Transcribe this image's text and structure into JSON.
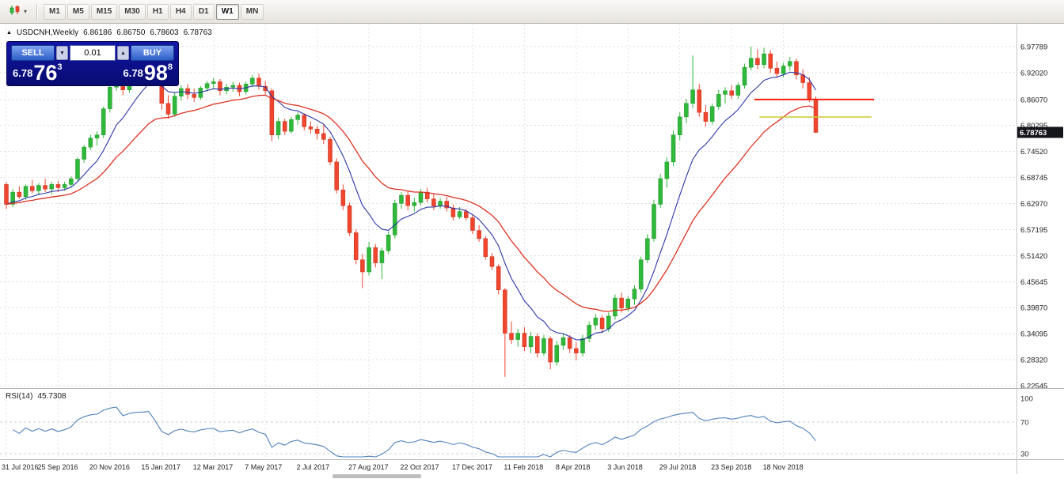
{
  "toolbar": {
    "timeframes": [
      "M1",
      "M5",
      "M15",
      "M30",
      "H1",
      "H4",
      "D1",
      "W1",
      "MN"
    ],
    "active": "W1",
    "chart_button_icon": "candlestick-chart-icon",
    "chart_button_caret": "▾"
  },
  "chart_header": {
    "marker": "▲",
    "symbol_period": "USDCNH,Weekly",
    "open": "6.86186",
    "high": "6.86750",
    "low": "6.78603",
    "close": "6.78763"
  },
  "trade_panel": {
    "sell_label": "SELL",
    "buy_label": "BUY",
    "volume": "0.01",
    "decrease_glyph": "▼",
    "increase_glyph": "▲",
    "sell_price_small": "6.78",
    "sell_price_big": "76",
    "sell_price_sup": "3",
    "buy_price_small": "6.78",
    "buy_price_big": "98",
    "buy_price_sup": "8"
  },
  "price_axis": {
    "labels": [
      "6.97789",
      "6.92020",
      "6.86070",
      "6.80295",
      "6.74520",
      "6.68745",
      "6.62970",
      "6.57195",
      "6.51420",
      "6.45645",
      "6.39870",
      "6.34095",
      "6.28320",
      "6.22545"
    ],
    "current": "6.78763"
  },
  "rsi_panel": {
    "name": "RSI(14)",
    "value": "45.7308",
    "axis_labels": [
      "100",
      "70",
      "30"
    ],
    "levels": [
      70,
      30
    ]
  },
  "date_axis": [
    "31 Jul 2016",
    "25 Sep 2016",
    "20 Nov 2016",
    "15 Jan 2017",
    "12 Mar 2017",
    "7 May 2017",
    "2 Jul 2017",
    "27 Aug 2017",
    "22 Oct 2017",
    "17 Dec 2017",
    "11 Feb 2018",
    "8 Apr 2018",
    "3 Jun 2018",
    "29 Jul 2018",
    "23 Sep 2018",
    "18 Nov 2018"
  ],
  "chart_data": {
    "type": "candlestick",
    "symbol": "USDCNH",
    "timeframe": "Weekly",
    "tick_interval_weeks": 8,
    "ylim": [
      6.2,
      7.02
    ],
    "colors": {
      "bull": "#2fb83a",
      "bull_border": "#1b9428",
      "bear": "#f0452e",
      "bear_border": "#c22f16"
    },
    "candles": [
      [
        6.672,
        6.678,
        6.618,
        6.628
      ],
      [
        6.628,
        6.662,
        6.622,
        6.655
      ],
      [
        6.655,
        6.668,
        6.64,
        6.645
      ],
      [
        6.645,
        6.672,
        6.638,
        6.668
      ],
      [
        6.668,
        6.682,
        6.652,
        6.658
      ],
      [
        6.658,
        6.675,
        6.648,
        6.67
      ],
      [
        6.67,
        6.685,
        6.655,
        6.662
      ],
      [
        6.662,
        6.678,
        6.65,
        6.672
      ],
      [
        6.672,
        6.68,
        6.655,
        6.665
      ],
      [
        6.665,
        6.678,
        6.658,
        6.672
      ],
      [
        6.672,
        6.69,
        6.665,
        6.685
      ],
      [
        6.685,
        6.732,
        6.68,
        6.728
      ],
      [
        6.728,
        6.76,
        6.72,
        6.755
      ],
      [
        6.755,
        6.782,
        6.748,
        6.775
      ],
      [
        6.775,
        6.79,
        6.758,
        6.782
      ],
      [
        6.782,
        6.845,
        6.775,
        6.84
      ],
      [
        6.84,
        6.895,
        6.832,
        6.888
      ],
      [
        6.888,
        6.925,
        6.88,
        6.918
      ],
      [
        6.918,
        6.93,
        6.87,
        6.882
      ],
      [
        6.882,
        6.928,
        6.875,
        6.922
      ],
      [
        6.922,
        6.95,
        6.912,
        6.945
      ],
      [
        6.945,
        6.962,
        6.93,
        6.952
      ],
      [
        6.952,
        6.968,
        6.938,
        6.962
      ],
      [
        6.962,
        6.972,
        6.905,
        6.918
      ],
      [
        6.918,
        6.925,
        6.838,
        6.852
      ],
      [
        6.852,
        6.87,
        6.818,
        6.828
      ],
      [
        6.828,
        6.875,
        6.822,
        6.868
      ],
      [
        6.868,
        6.892,
        6.858,
        6.885
      ],
      [
        6.885,
        6.895,
        6.862,
        6.872
      ],
      [
        6.872,
        6.885,
        6.855,
        6.865
      ],
      [
        6.865,
        6.89,
        6.86,
        6.886
      ],
      [
        6.886,
        6.902,
        6.878,
        6.896
      ],
      [
        6.896,
        6.908,
        6.885,
        6.9
      ],
      [
        6.9,
        6.906,
        6.87,
        6.88
      ],
      [
        6.88,
        6.895,
        6.872,
        6.888
      ],
      [
        6.888,
        6.9,
        6.878,
        6.892
      ],
      [
        6.892,
        6.898,
        6.868,
        6.878
      ],
      [
        6.878,
        6.9,
        6.872,
        6.895
      ],
      [
        6.895,
        6.915,
        6.888,
        6.908
      ],
      [
        6.908,
        6.918,
        6.882,
        6.89
      ],
      [
        6.89,
        6.902,
        6.872,
        6.88
      ],
      [
        6.88,
        6.885,
        6.768,
        6.782
      ],
      [
        6.782,
        6.82,
        6.772,
        6.812
      ],
      [
        6.812,
        6.818,
        6.782,
        6.79
      ],
      [
        6.79,
        6.822,
        6.785,
        6.816
      ],
      [
        6.816,
        6.832,
        6.805,
        6.826
      ],
      [
        6.826,
        6.83,
        6.792,
        6.8
      ],
      [
        6.8,
        6.812,
        6.785,
        6.795
      ],
      [
        6.795,
        6.802,
        6.772,
        6.785
      ],
      [
        6.785,
        6.805,
        6.762,
        6.772
      ],
      [
        6.772,
        6.778,
        6.715,
        6.722
      ],
      [
        6.722,
        6.73,
        6.652,
        6.66
      ],
      [
        6.66,
        6.672,
        6.615,
        6.625
      ],
      [
        6.625,
        6.632,
        6.558,
        6.565
      ],
      [
        6.565,
        6.572,
        6.495,
        6.505
      ],
      [
        6.505,
        6.518,
        6.442,
        6.478
      ],
      [
        6.478,
        6.545,
        6.47,
        6.532
      ],
      [
        6.532,
        6.54,
        6.488,
        6.498
      ],
      [
        6.498,
        6.532,
        6.462,
        6.525
      ],
      [
        6.525,
        6.568,
        6.518,
        6.56
      ],
      [
        6.56,
        6.638,
        6.552,
        6.63
      ],
      [
        6.63,
        6.655,
        6.618,
        6.648
      ],
      [
        6.648,
        6.658,
        6.615,
        6.625
      ],
      [
        6.625,
        6.642,
        6.612,
        6.632
      ],
      [
        6.632,
        6.662,
        6.625,
        6.655
      ],
      [
        6.655,
        6.665,
        6.632,
        6.64
      ],
      [
        6.64,
        6.65,
        6.615,
        6.624
      ],
      [
        6.624,
        6.642,
        6.618,
        6.635
      ],
      [
        6.635,
        6.645,
        6.612,
        6.62
      ],
      [
        6.62,
        6.628,
        6.592,
        6.6
      ],
      [
        6.6,
        6.622,
        6.595,
        6.612
      ],
      [
        6.612,
        6.618,
        6.592,
        6.598
      ],
      [
        6.598,
        6.605,
        6.562,
        6.57
      ],
      [
        6.57,
        6.582,
        6.545,
        6.552
      ],
      [
        6.552,
        6.558,
        6.505,
        6.512
      ],
      [
        6.512,
        6.52,
        6.482,
        6.49
      ],
      [
        6.49,
        6.495,
        6.428,
        6.438
      ],
      [
        6.438,
        6.442,
        6.245,
        6.342
      ],
      [
        6.342,
        6.368,
        6.318,
        6.328
      ],
      [
        6.328,
        6.352,
        6.312,
        6.342
      ],
      [
        6.342,
        6.355,
        6.302,
        6.312
      ],
      [
        6.312,
        6.345,
        6.298,
        6.335
      ],
      [
        6.335,
        6.342,
        6.288,
        6.298
      ],
      [
        6.298,
        6.338,
        6.292,
        6.33
      ],
      [
        6.33,
        6.335,
        6.262,
        6.278
      ],
      [
        6.278,
        6.325,
        6.27,
        6.315
      ],
      [
        6.315,
        6.342,
        6.305,
        6.332
      ],
      [
        6.332,
        6.338,
        6.298,
        6.308
      ],
      [
        6.308,
        6.322,
        6.282,
        6.298
      ],
      [
        6.298,
        6.338,
        6.29,
        6.33
      ],
      [
        6.33,
        6.368,
        6.322,
        6.36
      ],
      [
        6.36,
        6.385,
        6.35,
        6.376
      ],
      [
        6.376,
        6.382,
        6.342,
        6.352
      ],
      [
        6.352,
        6.388,
        6.345,
        6.38
      ],
      [
        6.38,
        6.428,
        6.372,
        6.42
      ],
      [
        6.42,
        6.432,
        6.388,
        6.398
      ],
      [
        6.398,
        6.425,
        6.39,
        6.418
      ],
      [
        6.418,
        6.448,
        6.405,
        6.44
      ],
      [
        6.44,
        6.512,
        6.432,
        6.505
      ],
      [
        6.505,
        6.562,
        6.498,
        6.552
      ],
      [
        6.552,
        6.638,
        6.545,
        6.628
      ],
      [
        6.628,
        6.695,
        6.62,
        6.685
      ],
      [
        6.685,
        6.732,
        6.665,
        6.722
      ],
      [
        6.722,
        6.792,
        6.712,
        6.782
      ],
      [
        6.782,
        6.832,
        6.77,
        6.822
      ],
      [
        6.822,
        6.862,
        6.808,
        6.852
      ],
      [
        6.852,
        6.958,
        6.842,
        6.882
      ],
      [
        6.882,
        6.895,
        6.822,
        6.832
      ],
      [
        6.832,
        6.848,
        6.8,
        6.812
      ],
      [
        6.812,
        6.852,
        6.805,
        6.845
      ],
      [
        6.845,
        6.882,
        6.838,
        6.872
      ],
      [
        6.872,
        6.888,
        6.852,
        6.88
      ],
      [
        6.88,
        6.892,
        6.862,
        6.87
      ],
      [
        6.87,
        6.898,
        6.862,
        6.892
      ],
      [
        6.892,
        6.94,
        6.885,
        6.932
      ],
      [
        6.932,
        6.978,
        6.925,
        6.952
      ],
      [
        6.952,
        6.972,
        6.928,
        6.938
      ],
      [
        6.938,
        6.975,
        6.93,
        6.962
      ],
      [
        6.962,
        6.97,
        6.92,
        6.93
      ],
      [
        6.93,
        6.945,
        6.908,
        6.918
      ],
      [
        6.918,
        6.942,
        6.91,
        6.935
      ],
      [
        6.935,
        6.955,
        6.925,
        6.945
      ],
      [
        6.945,
        6.952,
        6.905,
        6.915
      ],
      [
        6.915,
        6.928,
        6.885,
        6.898
      ],
      [
        6.898,
        6.91,
        6.855,
        6.862
      ],
      [
        6.86186,
        6.8675,
        6.78603,
        6.78763
      ]
    ],
    "overlays": [
      {
        "name": "ma-fast-line",
        "type": "ema",
        "period": 9,
        "color": "#2b35a8",
        "width": 1.1
      },
      {
        "name": "ma-slow-line",
        "type": "ema",
        "period": 22,
        "color": "#dd3222",
        "width": 1.3
      }
    ],
    "objects": [
      {
        "name": "resistance-line",
        "type": "horizontal-segment",
        "price": 6.8607,
        "from_week": 115.5,
        "to_week": 134,
        "color": "#ff1f0f",
        "width": 2
      },
      {
        "name": "support-line",
        "type": "horizontal-segment",
        "price": 6.8218,
        "from_week": 116.3,
        "to_week": 133.6,
        "color": "#cbcb2a",
        "width": 1.4
      }
    ],
    "indicator": {
      "name": "RSI",
      "period": 14,
      "value": 45.7308,
      "color": "#4f81bd",
      "levels": [
        70,
        30
      ]
    }
  }
}
